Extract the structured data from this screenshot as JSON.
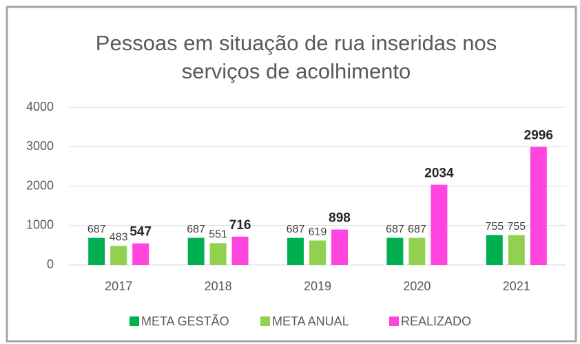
{
  "chart_data": {
    "type": "bar",
    "title": [
      "Pessoas em situação de rua inseridas nos",
      "serviços de acolhimento"
    ],
    "categories": [
      "2017",
      "2018",
      "2019",
      "2020",
      "2021"
    ],
    "series": [
      {
        "name": "META GESTÃO",
        "color": "#00b050",
        "values": [
          687,
          687,
          687,
          687,
          755
        ]
      },
      {
        "name": "META ANUAL",
        "color": "#92d050",
        "values": [
          483,
          551,
          619,
          687,
          755
        ]
      },
      {
        "name": "REALIZADO",
        "color": "#ff44e0",
        "values": [
          547,
          716,
          898,
          2034,
          2996
        ],
        "bold_labels": true
      }
    ],
    "ylim": [
      0,
      4000
    ],
    "yticks": [
      0,
      1000,
      2000,
      3000,
      4000
    ],
    "grid": true,
    "legend": "bottom"
  }
}
